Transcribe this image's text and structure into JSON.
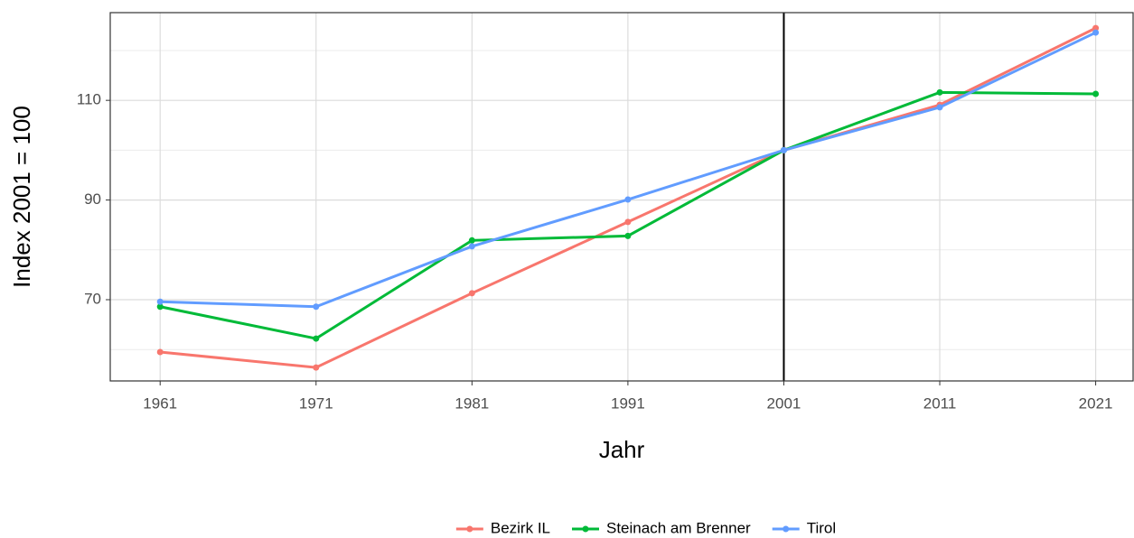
{
  "chart_data": {
    "type": "line",
    "x_label": "Jahr",
    "y_label": "Index 2001 = 100",
    "x": [
      1961,
      1971,
      1981,
      1991,
      2001,
      2011,
      2021
    ],
    "series": [
      {
        "name": "Bezirk IL",
        "color": "#F8766D",
        "values": [
          59.5,
          56.4,
          71.3,
          85.6,
          100,
          109.1,
          124.5
        ]
      },
      {
        "name": "Steinach am Brenner",
        "color": "#00BA38",
        "values": [
          68.6,
          62.2,
          81.9,
          82.8,
          100,
          111.6,
          111.3
        ]
      },
      {
        "name": "Tirol",
        "color": "#619CFF",
        "values": [
          69.6,
          68.6,
          80.7,
          90.1,
          100,
          108.6,
          123.6
        ]
      }
    ],
    "xlim": [
      1957.8,
      2023.4
    ],
    "xticks": [
      1961,
      1971,
      1981,
      1991,
      2001,
      2011,
      2021
    ],
    "ylim": [
      53.7,
      127.6
    ],
    "yticks": [
      70,
      90,
      110
    ],
    "yminor": [
      60,
      80,
      100,
      120
    ],
    "vline": 2001,
    "grid": true,
    "legend": "bottom"
  }
}
